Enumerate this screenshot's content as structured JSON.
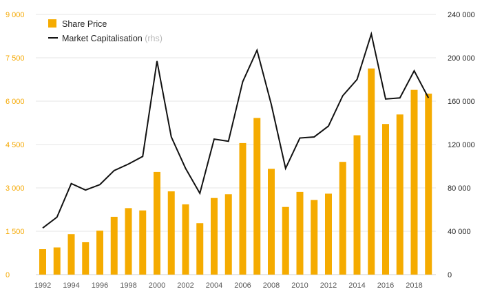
{
  "chart_data": {
    "type": "bar+line",
    "x": [
      1992,
      1993,
      1994,
      1995,
      1996,
      1997,
      1998,
      1999,
      2000,
      2001,
      2002,
      2003,
      2004,
      2005,
      2006,
      2007,
      2008,
      2009,
      2010,
      2011,
      2012,
      2013,
      2014,
      2015,
      2016,
      2017,
      2018,
      2019
    ],
    "x_tick_labels": [
      "1992",
      "1994",
      "1996",
      "1998",
      "2000",
      "2002",
      "2004",
      "2006",
      "2008",
      "2010",
      "2012",
      "2014",
      "2016",
      "2018"
    ],
    "series": [
      {
        "name": "Share Price",
        "kind": "bar",
        "axis": "left",
        "color": "#f5ab00",
        "values": [
          880,
          940,
          1400,
          1120,
          1520,
          2000,
          2300,
          2220,
          3550,
          2880,
          2430,
          1780,
          2650,
          2780,
          4550,
          5420,
          3660,
          2340,
          2860,
          2580,
          2800,
          3900,
          4820,
          7130,
          5210,
          5540,
          6390,
          6260
        ]
      },
      {
        "name": "Market Capitalisation",
        "name_suffix": "(rhs)",
        "kind": "line",
        "axis": "right",
        "color": "#111111",
        "values": [
          43000,
          53000,
          84000,
          78000,
          83000,
          96000,
          102000,
          109000,
          197000,
          127000,
          98000,
          75000,
          125000,
          123000,
          178000,
          207000,
          157000,
          98000,
          126000,
          127000,
          137000,
          165000,
          180000,
          222000,
          162000,
          163000,
          188000,
          163000
        ]
      }
    ],
    "y_left": {
      "lim": [
        0,
        9000
      ],
      "ticks": [
        0,
        1500,
        3000,
        4500,
        6000,
        7500,
        9000
      ],
      "tick_labels": [
        "0",
        "1 500",
        "3 000",
        "4 500",
        "6 000",
        "7 500",
        "9 000"
      ],
      "color": "#f5a800"
    },
    "y_right": {
      "lim": [
        0,
        240000
      ],
      "ticks": [
        0,
        40000,
        80000,
        120000,
        160000,
        200000,
        240000
      ],
      "tick_labels": [
        "0",
        "40 000",
        "80 000",
        "120 000",
        "160 000",
        "200 000",
        "240 000"
      ],
      "color": "#222222"
    },
    "grid": true,
    "grid_color": "#e6e6e6",
    "legend": "top-left"
  }
}
